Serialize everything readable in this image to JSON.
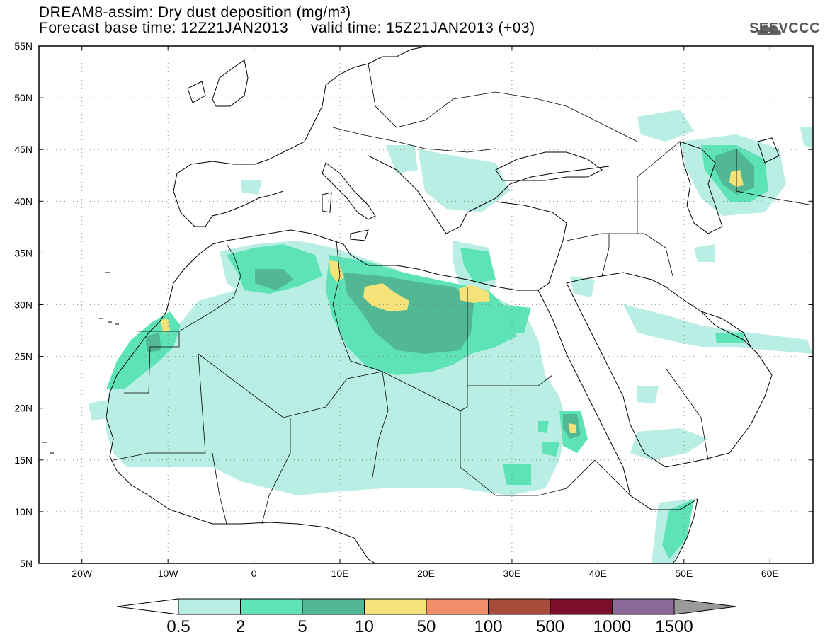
{
  "header": {
    "title_line1": "DREAM8-assim: Dry dust deposition (mg/m³)",
    "title_line2": "Forecast base time: 12Z21JAN2013     valid time: 15Z21JAN2013 (+03)"
  },
  "logo": {
    "text": "SEEVCCC",
    "icon": "cloud-icon"
  },
  "map": {
    "lat_range": [
      5,
      55
    ],
    "lon_range": [
      -25,
      65
    ],
    "lat_ticks": [
      {
        "value": 55,
        "label": "55N"
      },
      {
        "value": 50,
        "label": "50N"
      },
      {
        "value": 45,
        "label": "45N"
      },
      {
        "value": 40,
        "label": "40N"
      },
      {
        "value": 35,
        "label": "35N"
      },
      {
        "value": 30,
        "label": "30N"
      },
      {
        "value": 25,
        "label": "25N"
      },
      {
        "value": 20,
        "label": "20N"
      },
      {
        "value": 15,
        "label": "15N"
      },
      {
        "value": 10,
        "label": "10N"
      },
      {
        "value": 5,
        "label": "5N"
      }
    ],
    "lon_ticks": [
      {
        "value": -20,
        "label": "20W"
      },
      {
        "value": -10,
        "label": "10W"
      },
      {
        "value": 0,
        "label": "0"
      },
      {
        "value": 10,
        "label": "10E"
      },
      {
        "value": 20,
        "label": "20E"
      },
      {
        "value": 30,
        "label": "30E"
      },
      {
        "value": 40,
        "label": "40E"
      },
      {
        "value": 50,
        "label": "50E"
      },
      {
        "value": 60,
        "label": "60E"
      }
    ],
    "grid": true,
    "colors": {
      "c1": "#b8eee3",
      "c2": "#5de3b6",
      "c3": "#52b893",
      "c4": "#f5e37a",
      "c5": "#ef8e68",
      "c6": "#a84b3c",
      "c7": "#7d0f2c",
      "c8": "#8b6a9a",
      "over": "#9a9a9a",
      "under": "#ffffff"
    }
  },
  "colorbar": {
    "labels": [
      "0.5",
      "2",
      "5",
      "10",
      "50",
      "100",
      "500",
      "1000",
      "1500"
    ],
    "colors": [
      "#b8eee3",
      "#5de3b6",
      "#52b893",
      "#f5e37a",
      "#ef8e68",
      "#a84b3c",
      "#7d0f2c",
      "#8b6a9a"
    ]
  }
}
